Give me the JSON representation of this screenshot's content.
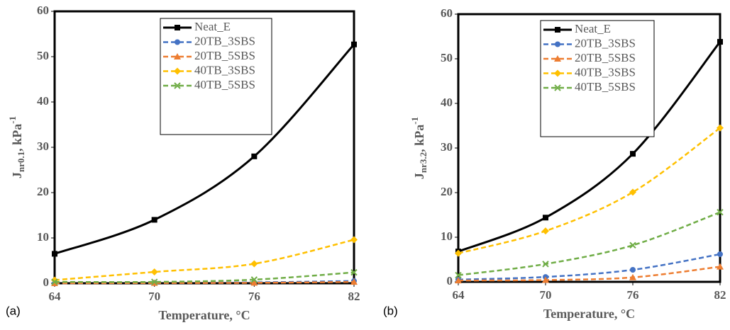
{
  "chart_data": [
    {
      "type": "line",
      "panel_label": "(a)",
      "x_label": "Temperature, °C",
      "y_label": {
        "base": "J",
        "sub": "nr0.1",
        "rest": ", kPa",
        "sup": "-1"
      },
      "x": [
        64,
        70,
        76,
        82
      ],
      "xlim": [
        64,
        82
      ],
      "xticks": [
        64,
        70,
        76,
        82
      ],
      "ylim": [
        0,
        60
      ],
      "yticks": [
        0,
        10,
        20,
        30,
        40,
        50,
        60
      ],
      "series": [
        {
          "name": "Neat_E",
          "color": "#000000",
          "marker": "square",
          "line_style": "solid",
          "values": [
            6.5,
            14,
            28,
            52.7
          ]
        },
        {
          "name": "20TB_3SBS",
          "color": "#4472c4",
          "marker": "circle",
          "line_style": "dashed",
          "values": [
            0,
            0.1,
            0.2,
            0.5
          ]
        },
        {
          "name": "20TB_5SBS",
          "color": "#ed7d31",
          "marker": "triangle",
          "line_style": "dashed",
          "values": [
            0,
            0.05,
            0.1,
            0.3
          ]
        },
        {
          "name": "40TB_3SBS",
          "color": "#ffc000",
          "marker": "diamond",
          "line_style": "dashed",
          "values": [
            0.7,
            2.5,
            4.3,
            9.6
          ]
        },
        {
          "name": "40TB_5SBS",
          "color": "#70ad47",
          "marker": "x",
          "line_style": "dashed",
          "values": [
            0.3,
            0.3,
            0.8,
            2.4
          ]
        }
      ]
    },
    {
      "type": "line",
      "panel_label": "(b)",
      "x_label": "Temperature, °C",
      "y_label": {
        "base": "J",
        "sub": "nr3.2",
        "rest": ", kPa",
        "sup": "-1"
      },
      "x": [
        64,
        70,
        76,
        82
      ],
      "xlim": [
        64,
        82
      ],
      "xticks": [
        64,
        70,
        76,
        82
      ],
      "ylim": [
        0,
        60
      ],
      "yticks": [
        0,
        10,
        20,
        30,
        40,
        50,
        60
      ],
      "series": [
        {
          "name": "Neat_E",
          "color": "#000000",
          "marker": "square",
          "line_style": "solid",
          "values": [
            6.8,
            14.4,
            28.7,
            53.8
          ]
        },
        {
          "name": "20TB_3SBS",
          "color": "#4472c4",
          "marker": "circle",
          "line_style": "dashed",
          "values": [
            0.5,
            1.1,
            2.7,
            6.2
          ]
        },
        {
          "name": "20TB_5SBS",
          "color": "#ed7d31",
          "marker": "triangle",
          "line_style": "dashed",
          "values": [
            0.3,
            0.4,
            1.0,
            3.4
          ]
        },
        {
          "name": "40TB_3SBS",
          "color": "#ffc000",
          "marker": "diamond",
          "line_style": "dashed",
          "values": [
            6.4,
            11.4,
            20.1,
            34.5
          ]
        },
        {
          "name": "40TB_5SBS",
          "color": "#70ad47",
          "marker": "x",
          "line_style": "dashed",
          "values": [
            1.5,
            4.0,
            8.2,
            15.6
          ]
        }
      ]
    }
  ]
}
